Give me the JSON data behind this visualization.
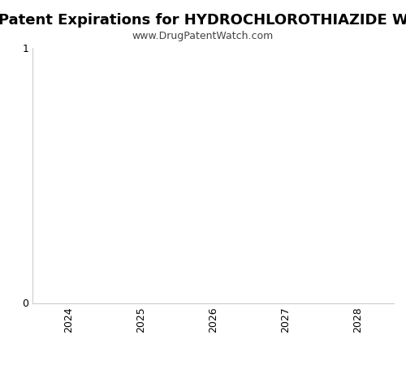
{
  "title": "Patent Expirations for HYDROCHLOROTHIAZIDE W",
  "subtitle": "www.DrugPatentWatch.com",
  "title_fontsize": 13,
  "subtitle_fontsize": 9,
  "title_fontweight": "bold",
  "x_years": [
    2024,
    2025,
    2026,
    2027,
    2028
  ],
  "xlim": [
    2023.5,
    2028.5
  ],
  "ylim": [
    0,
    1
  ],
  "yticks": [
    0,
    1
  ],
  "background_color": "#ffffff",
  "plot_bg_color": "#ffffff",
  "spine_color": "#cccccc",
  "tick_label_color": "#000000",
  "xlabel": "",
  "ylabel": "",
  "grid": false
}
